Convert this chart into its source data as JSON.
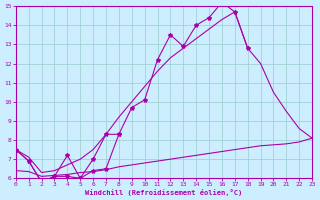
{
  "xlabel": "Windchill (Refroidissement éolien,°C)",
  "xlim": [
    0,
    23
  ],
  "ylim": [
    6,
    15
  ],
  "xticks": [
    0,
    1,
    2,
    3,
    4,
    5,
    6,
    7,
    8,
    9,
    10,
    11,
    12,
    13,
    14,
    15,
    16,
    17,
    18,
    19,
    20,
    21,
    22,
    23
  ],
  "yticks": [
    6,
    7,
    8,
    9,
    10,
    11,
    12,
    13,
    14,
    15
  ],
  "bg_color": "#cceeff",
  "line_color": "#aa00aa",
  "grid_color": "#99cccc",
  "curve1_x": [
    0,
    1,
    2,
    3,
    4,
    5,
    6,
    7,
    8,
    9,
    10,
    11,
    12,
    13,
    14,
    15,
    16,
    17,
    18
  ],
  "curve1_y": [
    7.5,
    6.9,
    5.8,
    6.1,
    6.1,
    6.0,
    6.4,
    6.5,
    8.3,
    9.7,
    10.1,
    12.2,
    13.5,
    12.9,
    14.0,
    14.4,
    15.2,
    14.7,
    12.8
  ],
  "curve2_x": [
    0,
    1,
    2,
    3,
    4,
    5,
    6,
    7,
    8
  ],
  "curve2_y": [
    7.5,
    6.9,
    5.8,
    6.1,
    7.2,
    6.0,
    7.0,
    8.3,
    8.3
  ],
  "curve3_x": [
    0,
    1,
    2,
    3,
    4,
    5,
    6,
    7,
    8,
    9,
    10,
    11,
    12,
    13,
    14,
    15,
    16,
    17,
    18,
    19,
    20,
    21,
    22,
    23
  ],
  "curve3_y": [
    6.4,
    6.35,
    6.1,
    6.15,
    6.2,
    6.3,
    6.35,
    6.45,
    6.6,
    6.7,
    6.8,
    6.9,
    7.0,
    7.1,
    7.2,
    7.3,
    7.4,
    7.5,
    7.6,
    7.7,
    7.75,
    7.8,
    7.9,
    8.1
  ],
  "curve4_x": [
    0,
    1,
    2,
    3,
    4,
    5,
    6,
    7,
    8,
    9,
    10,
    11,
    12,
    13,
    14,
    15,
    16,
    17,
    18,
    19,
    20,
    21,
    22,
    23
  ],
  "curve4_y": [
    7.5,
    7.1,
    6.3,
    6.4,
    6.7,
    7.0,
    7.5,
    8.3,
    9.2,
    10.0,
    10.8,
    11.6,
    12.3,
    12.8,
    13.3,
    13.8,
    14.3,
    14.7,
    12.8,
    12.0,
    10.5,
    9.5,
    8.6,
    8.1
  ],
  "figsize": [
    3.2,
    2.0
  ],
  "dpi": 100
}
